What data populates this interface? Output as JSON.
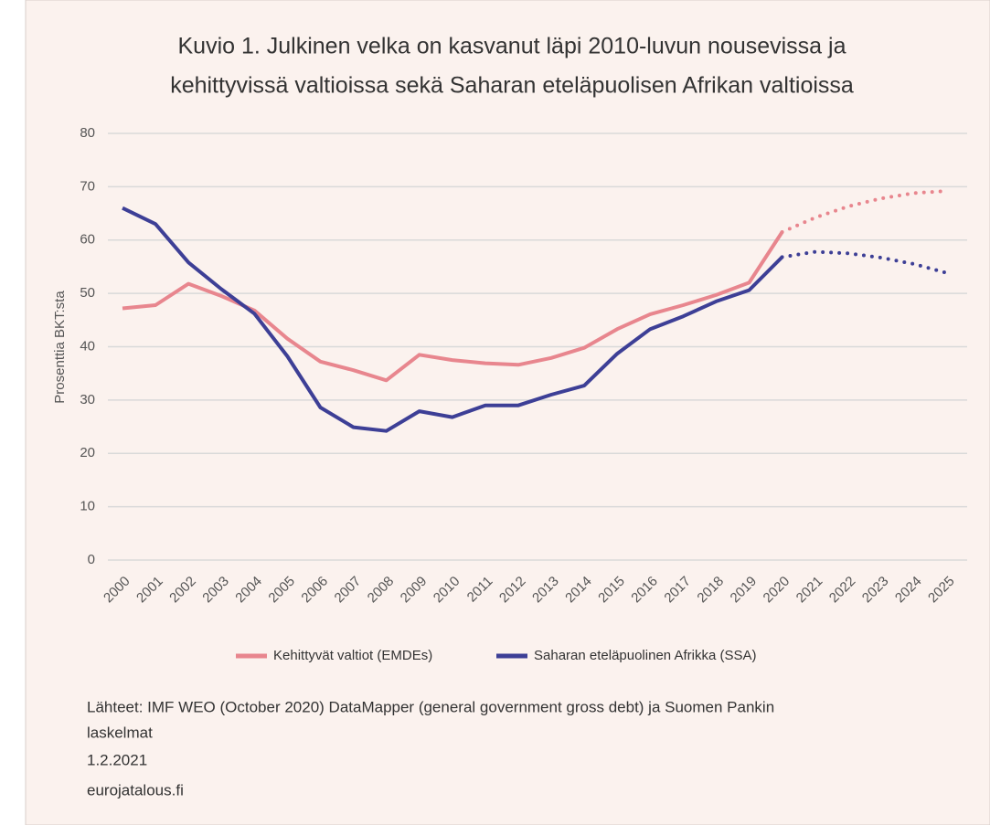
{
  "chart_data": {
    "type": "line",
    "title": [
      "Kuvio 1. Julkinen velka on kasvanut läpi 2010-luvun nousevissa ja",
      "kehittyvissä valtioissa sekä Saharan eteläpuolisen Afrikan valtioissa"
    ],
    "y_label": "Prosenttia BKT:sta",
    "categories": [
      "2000",
      "2001",
      "2002",
      "2003",
      "2004",
      "2005",
      "2006",
      "2007",
      "2008",
      "2009",
      "2010",
      "2011",
      "2012",
      "2013",
      "2014",
      "2015",
      "2016",
      "2017",
      "2018",
      "2019",
      "2020",
      "2021",
      "2022",
      "2023",
      "2024",
      "2025"
    ],
    "series": [
      {
        "name": "Kehittyvät valtiot (EMDEs)",
        "color": "#e8868e",
        "values": [
          47.2,
          47.8,
          51.8,
          49.5,
          46.8,
          41.5,
          37.2,
          35.6,
          33.7,
          38.5,
          37.5,
          36.9,
          36.6,
          37.9,
          39.8,
          43.3,
          46.1,
          47.8,
          49.7,
          52.0,
          61.5,
          null,
          null,
          null,
          null,
          null
        ],
        "forecast_values": [
          null,
          null,
          null,
          null,
          null,
          null,
          null,
          null,
          null,
          null,
          null,
          null,
          null,
          null,
          null,
          null,
          null,
          null,
          null,
          null,
          61.5,
          64.2,
          66.3,
          67.8,
          68.8,
          69.2
        ]
      },
      {
        "name": "Saharan eteläpuolinen Afrikka (SSA)",
        "color": "#3d3f96",
        "values": [
          66.0,
          63.0,
          55.8,
          50.8,
          46.2,
          38.2,
          28.6,
          24.9,
          24.2,
          27.9,
          26.8,
          29.0,
          29.0,
          31.0,
          32.7,
          38.7,
          43.3,
          45.7,
          48.5,
          50.6,
          56.8,
          null,
          null,
          null,
          null,
          null
        ],
        "forecast_values": [
          null,
          null,
          null,
          null,
          null,
          null,
          null,
          null,
          null,
          null,
          null,
          null,
          null,
          null,
          null,
          null,
          null,
          null,
          null,
          null,
          56.8,
          57.8,
          57.5,
          56.7,
          55.5,
          53.8
        ]
      }
    ],
    "ylim": [
      0,
      80
    ],
    "yticks": [
      0,
      10,
      20,
      30,
      40,
      50,
      60,
      70,
      80
    ],
    "grid": true,
    "legend": "bottom",
    "footer": [
      "Lähteet: IMF WEO (October 2020) DataMapper (general government gross debt) ja Suomen Pankin",
      "laskelmat",
      "1.2.2021",
      "eurojatalous.fi"
    ]
  }
}
